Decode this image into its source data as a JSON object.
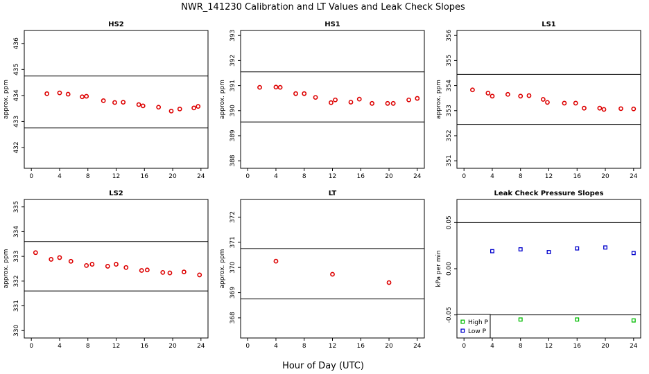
{
  "figure": {
    "title": "NWR_141230  Calibration and LT Values and Leak Check Slopes",
    "xlabel": "Hour of Day (UTC)"
  },
  "colors": {
    "red": "#dd0000",
    "blue": "#0000cc",
    "green": "#00bb00",
    "axis": "#000000"
  },
  "chart_data": [
    {
      "type": "scatter",
      "title": "HS2",
      "xlabel": "",
      "ylabel": "approx. ppm",
      "xlim": [
        -1,
        25
      ],
      "ylim": [
        431.2,
        436.5
      ],
      "xticks": [
        0,
        4,
        8,
        12,
        16,
        20,
        24
      ],
      "yticks": [
        432,
        433,
        434,
        435,
        436
      ],
      "hlines": [
        434.75,
        432.75
      ],
      "series": [
        {
          "marker": "circle",
          "color": "#dd0000",
          "points": [
            [
              2.2,
              434.07
            ],
            [
              4.0,
              434.1
            ],
            [
              5.2,
              434.05
            ],
            [
              7.2,
              433.95
            ],
            [
              7.8,
              433.97
            ],
            [
              10.2,
              433.8
            ],
            [
              11.8,
              433.73
            ],
            [
              13.0,
              433.74
            ],
            [
              15.2,
              433.65
            ],
            [
              15.8,
              433.6
            ],
            [
              18.0,
              433.55
            ],
            [
              19.8,
              433.4
            ],
            [
              21.0,
              433.48
            ],
            [
              23.0,
              433.52
            ],
            [
              23.6,
              433.58
            ]
          ]
        }
      ]
    },
    {
      "type": "scatter",
      "title": "HS1",
      "xlabel": "",
      "ylabel": "approx. ppm",
      "xlim": [
        -1,
        25
      ],
      "ylim": [
        387.7,
        393.2
      ],
      "xticks": [
        0,
        4,
        8,
        12,
        16,
        20,
        24
      ],
      "yticks": [
        388,
        389,
        390,
        391,
        392,
        393
      ],
      "hlines": [
        391.55,
        389.55
      ],
      "series": [
        {
          "marker": "circle",
          "color": "#dd0000",
          "points": [
            [
              1.7,
              390.93
            ],
            [
              4.0,
              390.94
            ],
            [
              4.6,
              390.93
            ],
            [
              6.8,
              390.68
            ],
            [
              8.0,
              390.68
            ],
            [
              9.6,
              390.53
            ],
            [
              11.8,
              390.32
            ],
            [
              12.4,
              390.43
            ],
            [
              14.6,
              390.34
            ],
            [
              15.8,
              390.46
            ],
            [
              17.6,
              390.29
            ],
            [
              19.8,
              390.29
            ],
            [
              20.6,
              390.29
            ],
            [
              22.8,
              390.43
            ],
            [
              24.0,
              390.49
            ]
          ]
        }
      ]
    },
    {
      "type": "scatter",
      "title": "LS1",
      "xlabel": "",
      "ylabel": "approx. ppm",
      "xlim": [
        -1,
        25
      ],
      "ylim": [
        350.7,
        356.2
      ],
      "xticks": [
        0,
        4,
        8,
        12,
        16,
        20,
        24
      ],
      "yticks": [
        351,
        352,
        353,
        354,
        355,
        356
      ],
      "hlines": [
        354.45,
        352.45
      ],
      "series": [
        {
          "marker": "circle",
          "color": "#dd0000",
          "points": [
            [
              1.2,
              353.83
            ],
            [
              3.4,
              353.7
            ],
            [
              4.0,
              353.58
            ],
            [
              6.2,
              353.65
            ],
            [
              8.0,
              353.58
            ],
            [
              9.2,
              353.6
            ],
            [
              11.2,
              353.45
            ],
            [
              11.8,
              353.33
            ],
            [
              14.2,
              353.3
            ],
            [
              15.8,
              353.3
            ],
            [
              17.0,
              353.1
            ],
            [
              19.2,
              353.1
            ],
            [
              19.8,
              353.05
            ],
            [
              22.2,
              353.08
            ],
            [
              24.0,
              353.07
            ]
          ]
        }
      ]
    },
    {
      "type": "scatter",
      "title": "LS2",
      "xlabel": "",
      "ylabel": "approx. ppm",
      "xlim": [
        -1,
        25
      ],
      "ylim": [
        329.7,
        335.3
      ],
      "xticks": [
        0,
        4,
        8,
        12,
        16,
        20,
        24
      ],
      "yticks": [
        330,
        331,
        332,
        333,
        334,
        335
      ],
      "hlines": [
        333.6,
        331.6
      ],
      "series": [
        {
          "marker": "circle",
          "color": "#dd0000",
          "points": [
            [
              0.6,
              333.15
            ],
            [
              2.8,
              332.88
            ],
            [
              4.0,
              332.95
            ],
            [
              5.6,
              332.8
            ],
            [
              7.8,
              332.63
            ],
            [
              8.6,
              332.68
            ],
            [
              10.8,
              332.6
            ],
            [
              12.0,
              332.68
            ],
            [
              13.4,
              332.55
            ],
            [
              15.6,
              332.43
            ],
            [
              16.4,
              332.45
            ],
            [
              18.6,
              332.35
            ],
            [
              19.6,
              332.33
            ],
            [
              21.6,
              332.37
            ],
            [
              23.8,
              332.25
            ]
          ]
        }
      ]
    },
    {
      "type": "scatter",
      "title": "LT",
      "xlabel": "",
      "ylabel": "approx. ppm",
      "xlim": [
        -1,
        25
      ],
      "ylim": [
        367.2,
        372.7
      ],
      "xticks": [
        0,
        4,
        8,
        12,
        16,
        20,
        24
      ],
      "yticks": [
        368,
        369,
        370,
        371,
        372
      ],
      "hlines": [
        370.75,
        368.75
      ],
      "series": [
        {
          "marker": "circle",
          "color": "#dd0000",
          "points": [
            [
              4.0,
              370.25
            ],
            [
              12.0,
              369.73
            ],
            [
              20.0,
              369.4
            ]
          ]
        }
      ]
    },
    {
      "type": "scatter",
      "title": "Leak Check Pressure Slopes",
      "xlabel": "",
      "ylabel": "kPa per min",
      "xlim": [
        -1,
        25
      ],
      "ylim": [
        -0.075,
        0.075
      ],
      "xticks": [
        0,
        4,
        8,
        12,
        16,
        20,
        24
      ],
      "yticks": [
        -0.05,
        0.0,
        0.05
      ],
      "ytick_labels": [
        "-0.05",
        "0.00",
        "0.05"
      ],
      "hlines": [
        0.05,
        -0.05
      ],
      "legend": "bottom-left",
      "series": [
        {
          "name": "High P",
          "marker": "square",
          "color": "#00bb00",
          "points": [
            [
              8.0,
              -0.055
            ],
            [
              16.0,
              -0.055
            ],
            [
              24.0,
              -0.056
            ]
          ]
        },
        {
          "name": "Low P",
          "marker": "square",
          "color": "#0000cc",
          "points": [
            [
              4.0,
              0.019
            ],
            [
              8.0,
              0.021
            ],
            [
              12.0,
              0.018
            ],
            [
              16.0,
              0.022
            ],
            [
              20.0,
              0.023
            ],
            [
              24.0,
              0.017
            ]
          ]
        }
      ]
    }
  ]
}
